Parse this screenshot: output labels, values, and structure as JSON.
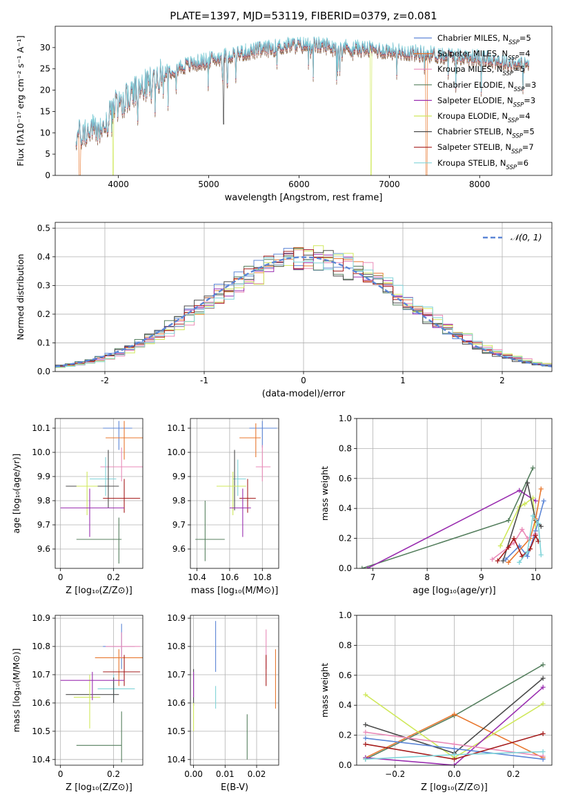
{
  "title": "PLATE=1397, MJD=53119, FIBERID=0379, z=0.081",
  "colors": {
    "blue": "#5b85d6",
    "orange": "#e8772e",
    "pink": "#e98ab8",
    "green": "#557f5e",
    "purple": "#9a2eb0",
    "yellow": "#cfe85a",
    "gray": "#4a4a4a",
    "red": "#a51c1c",
    "cyan": "#7fd3d8"
  },
  "legend": [
    {
      "key": "blue",
      "label": "Chabrier MILES, N",
      "sub": "SSP",
      "tail": "=5"
    },
    {
      "key": "orange",
      "label": "Salpeter MILES, N",
      "sub": "SSP",
      "tail": "=4"
    },
    {
      "key": "pink",
      "label": "Kroupa MILES, N",
      "sub": "SSP",
      "tail": "=5"
    },
    {
      "key": "green",
      "label": "Chabrier ELODIE, N",
      "sub": "SSP",
      "tail": "=3"
    },
    {
      "key": "purple",
      "label": "Salpeter ELODIE, N",
      "sub": "SSP",
      "tail": "=3"
    },
    {
      "key": "yellow",
      "label": "Kroupa ELODIE, N",
      "sub": "SSP",
      "tail": "=4"
    },
    {
      "key": "gray",
      "label": "Chabrier STELIB, N",
      "sub": "SSP",
      "tail": "=5"
    },
    {
      "key": "red",
      "label": "Salpeter STELIB, N",
      "sub": "SSP",
      "tail": "=7"
    },
    {
      "key": "cyan",
      "label": "Kroupa STELIB, N",
      "sub": "SSP",
      "tail": "=6"
    }
  ],
  "chart_data": [
    {
      "id": "spectrum",
      "type": "line",
      "xlabel": "wavelength [Angstrom, rest frame]",
      "ylabel": "Flux [fλ10⁻¹⁷ erg cm⁻² s⁻¹ A⁻¹]",
      "xlim": [
        3300,
        8800
      ],
      "ylim": [
        0,
        35
      ],
      "xticks": [
        4000,
        5000,
        6000,
        7000,
        8000
      ],
      "yticks": [
        0,
        5,
        10,
        15,
        20,
        25,
        30
      ],
      "continuum": [
        [
          3530,
          9
        ],
        [
          3700,
          10.5
        ],
        [
          3850,
          11
        ],
        [
          3950,
          16
        ],
        [
          4100,
          18
        ],
        [
          4300,
          21
        ],
        [
          4500,
          24
        ],
        [
          4700,
          25.5
        ],
        [
          4900,
          26.5
        ],
        [
          5100,
          27.5
        ],
        [
          5300,
          28.5
        ],
        [
          5600,
          29.5
        ],
        [
          5900,
          30.5
        ],
        [
          6200,
          30.5
        ],
        [
          6500,
          30
        ],
        [
          6800,
          29.5
        ],
        [
          7100,
          29
        ],
        [
          7400,
          28.5
        ],
        [
          7700,
          28
        ],
        [
          8000,
          27.5
        ],
        [
          8300,
          26.5
        ],
        [
          8500,
          26
        ]
      ]
    },
    {
      "id": "residuals",
      "type": "histogram",
      "xlabel": "(data-model)/error",
      "ylabel": "Normed distribution",
      "xlim": [
        -2.5,
        2.5
      ],
      "ylim": [
        0,
        0.52
      ],
      "xticks": [
        -2,
        -1,
        0,
        1,
        2
      ],
      "yticks": [
        0.0,
        0.1,
        0.2,
        0.3,
        0.4,
        0.5
      ],
      "reference_label": "𝒩(0, 1)",
      "reference": "normal(0,1)"
    },
    {
      "id": "age_vs_Z",
      "type": "scatter",
      "xlabel": "Z [log₁₀(Z/Z⊙)]",
      "ylabel": "age  [log₁₀(age/yr)]",
      "xlim": [
        -0.02,
        0.31
      ],
      "ylim": [
        9.52,
        10.14
      ],
      "xticks": [
        0.0,
        0.2
      ],
      "yticks": [
        9.6,
        9.7,
        9.8,
        9.9,
        10.0,
        10.1
      ],
      "points": [
        {
          "key": "blue",
          "x": 0.22,
          "y": 10.1,
          "xerr": [
            0.16,
            0.27
          ],
          "yerr": [
            10.01,
            10.13
          ]
        },
        {
          "key": "orange",
          "x": 0.24,
          "y": 10.06,
          "xerr": [
            0.17,
            0.31
          ],
          "yerr": [
            9.97,
            10.13
          ]
        },
        {
          "key": "pink",
          "x": 0.23,
          "y": 9.94,
          "xerr": [
            0.15,
            0.31
          ],
          "yerr": [
            9.88,
            10.02
          ]
        },
        {
          "key": "cyan",
          "x": 0.17,
          "y": 9.89,
          "xerr": [
            0.11,
            0.21
          ],
          "yerr": [
            9.82,
            9.98
          ]
        },
        {
          "key": "gray",
          "x": 0.18,
          "y": 9.86,
          "xerr": [
            0.02,
            0.22
          ],
          "yerr": [
            9.77,
            10.01
          ]
        },
        {
          "key": "yellow",
          "x": 0.1,
          "y": 9.86,
          "xerr": [
            0.06,
            0.14
          ],
          "yerr": [
            9.74,
            9.92
          ]
        },
        {
          "key": "red",
          "x": 0.24,
          "y": 9.81,
          "xerr": [
            0.16,
            0.3
          ],
          "yerr": [
            9.75,
            9.89
          ]
        },
        {
          "key": "purple",
          "x": 0.11,
          "y": 9.77,
          "xerr": [
            0.0,
            0.24
          ],
          "yerr": [
            9.65,
            9.85
          ]
        },
        {
          "key": "green",
          "x": 0.22,
          "y": 9.64,
          "xerr": [
            0.06,
            0.23
          ],
          "yerr": [
            9.54,
            9.73
          ]
        }
      ]
    },
    {
      "id": "age_vs_mass",
      "type": "scatter",
      "xlabel": "mass [log₁₀(M/M⊙)]",
      "ylabel": "",
      "xlim": [
        10.36,
        10.9
      ],
      "ylim": [
        9.52,
        10.14
      ],
      "xticks": [
        10.4,
        10.6,
        10.8
      ],
      "yticks": [
        9.6,
        9.7,
        9.8,
        9.9,
        10.0,
        10.1
      ],
      "points": [
        {
          "key": "blue",
          "x": 10.8,
          "y": 10.1,
          "xerr": [
            10.72,
            10.89
          ],
          "yerr": [
            10.02,
            10.13
          ]
        },
        {
          "key": "orange",
          "x": 10.76,
          "y": 10.06,
          "xerr": [
            10.66,
            10.79
          ],
          "yerr": [
            9.98,
            10.12
          ]
        },
        {
          "key": "pink",
          "x": 10.8,
          "y": 9.94,
          "xerr": [
            10.76,
            10.85
          ],
          "yerr": [
            9.88,
            10.03
          ]
        },
        {
          "key": "cyan",
          "x": 10.65,
          "y": 9.89,
          "xerr": [
            10.62,
            10.7
          ],
          "yerr": [
            9.82,
            9.97
          ]
        },
        {
          "key": "gray",
          "x": 10.63,
          "y": 9.86,
          "xerr": [
            10.6,
            10.7
          ],
          "yerr": [
            9.76,
            10.01
          ]
        },
        {
          "key": "yellow",
          "x": 10.62,
          "y": 9.86,
          "xerr": [
            10.52,
            10.7
          ],
          "yerr": [
            9.74,
            9.92
          ]
        },
        {
          "key": "red",
          "x": 10.71,
          "y": 9.81,
          "xerr": [
            10.66,
            10.76
          ],
          "yerr": [
            9.75,
            9.89
          ]
        },
        {
          "key": "purple",
          "x": 10.68,
          "y": 9.77,
          "xerr": [
            10.6,
            10.73
          ],
          "yerr": [
            9.65,
            9.85
          ]
        },
        {
          "key": "green",
          "x": 10.45,
          "y": 9.64,
          "xerr": [
            10.39,
            10.57
          ],
          "yerr": [
            9.55,
            9.8
          ]
        }
      ]
    },
    {
      "id": "weight_vs_age",
      "type": "line",
      "xlabel": "age  [log₁₀(age/yr)]",
      "ylabel": "mass weight",
      "xlim": [
        6.7,
        10.3
      ],
      "ylim": [
        0.0,
        1.0
      ],
      "xticks": [
        7,
        8,
        9,
        10
      ],
      "yticks": [
        0.0,
        0.2,
        0.4,
        0.6,
        0.8,
        1.0
      ],
      "series": [
        {
          "key": "green",
          "x": [
            6.8,
            9.5,
            9.95
          ],
          "y": [
            0.0,
            0.32,
            0.67
          ]
        },
        {
          "key": "purple",
          "x": [
            6.9,
            9.7,
            10.0
          ],
          "y": [
            0.0,
            0.52,
            0.45
          ]
        },
        {
          "key": "yellow",
          "x": [
            9.35,
            9.7,
            9.8,
            9.95,
            10.0
          ],
          "y": [
            0.15,
            0.41,
            0.43,
            0.47,
            0.25
          ]
        },
        {
          "key": "gray",
          "x": [
            9.4,
            9.85,
            10.0,
            10.1
          ],
          "y": [
            0.05,
            0.57,
            0.32,
            0.28
          ]
        },
        {
          "key": "blue",
          "x": [
            9.45,
            9.7,
            9.85,
            10.0,
            10.15
          ],
          "y": [
            0.06,
            0.15,
            0.08,
            0.25,
            0.45
          ]
        },
        {
          "key": "orange",
          "x": [
            9.5,
            9.9,
            10.0,
            10.1
          ],
          "y": [
            0.04,
            0.2,
            0.33,
            0.53
          ]
        },
        {
          "key": "pink",
          "x": [
            9.2,
            9.6,
            9.75,
            9.85,
            10.0
          ],
          "y": [
            0.06,
            0.17,
            0.26,
            0.2,
            0.23
          ]
        },
        {
          "key": "red",
          "x": [
            9.3,
            9.5,
            9.6,
            9.75,
            9.9,
            10.0,
            10.05
          ],
          "y": [
            0.05,
            0.14,
            0.2,
            0.08,
            0.13,
            0.22,
            0.18
          ]
        },
        {
          "key": "cyan",
          "x": [
            9.7,
            9.85,
            9.95,
            10.05,
            10.1
          ],
          "y": [
            0.04,
            0.11,
            0.35,
            0.3,
            0.09
          ]
        }
      ]
    },
    {
      "id": "mass_vs_Z",
      "type": "scatter",
      "xlabel": "Z [log₁₀(Z/Z⊙)]",
      "ylabel": "mass [log₁₀(M/M⊙)]",
      "xlim": [
        -0.02,
        0.31
      ],
      "ylim": [
        10.38,
        10.91
      ],
      "xticks": [
        0.0,
        0.2
      ],
      "yticks": [
        10.4,
        10.5,
        10.6,
        10.7,
        10.8,
        10.9
      ],
      "points": [
        {
          "key": "blue",
          "x": 0.23,
          "y": 10.8,
          "xerr": [
            0.16,
            0.28
          ],
          "yerr": [
            10.72,
            10.88
          ]
        },
        {
          "key": "orange",
          "x": 0.22,
          "y": 10.76,
          "xerr": [
            0.13,
            0.31
          ],
          "yerr": [
            10.66,
            10.79
          ]
        },
        {
          "key": "pink",
          "x": 0.23,
          "y": 10.8,
          "xerr": [
            0.17,
            0.3
          ],
          "yerr": [
            10.76,
            10.85
          ]
        },
        {
          "key": "cyan",
          "x": 0.2,
          "y": 10.65,
          "xerr": [
            0.14,
            0.28
          ],
          "yerr": [
            10.62,
            10.7
          ]
        },
        {
          "key": "gray",
          "x": 0.2,
          "y": 10.63,
          "xerr": [
            0.02,
            0.22
          ],
          "yerr": [
            10.6,
            10.69
          ]
        },
        {
          "key": "yellow",
          "x": 0.11,
          "y": 10.62,
          "xerr": [
            0.05,
            0.15
          ],
          "yerr": [
            10.51,
            10.7
          ]
        },
        {
          "key": "red",
          "x": 0.24,
          "y": 10.71,
          "xerr": [
            0.16,
            0.3
          ],
          "yerr": [
            10.66,
            10.77
          ]
        },
        {
          "key": "purple",
          "x": 0.12,
          "y": 10.68,
          "xerr": [
            0.0,
            0.24
          ],
          "yerr": [
            10.61,
            10.71
          ]
        },
        {
          "key": "green",
          "x": 0.23,
          "y": 10.45,
          "xerr": [
            0.06,
            0.23
          ],
          "yerr": [
            10.39,
            10.57
          ]
        }
      ]
    },
    {
      "id": "mass_vs_ebv",
      "type": "scatter",
      "xlabel": "E(B-V)",
      "ylabel": "",
      "xlim": [
        -0.001,
        0.027
      ],
      "ylim": [
        10.38,
        10.91
      ],
      "xticks": [
        0.0,
        0.01,
        0.02
      ],
      "xticklabels": [
        "0.00",
        "0.01",
        "0.02"
      ],
      "yticks": [
        10.4,
        10.5,
        10.6,
        10.7,
        10.8,
        10.9
      ],
      "points": [
        {
          "key": "blue",
          "x": 0.007,
          "y": 10.8,
          "yerr": [
            10.71,
            10.89
          ]
        },
        {
          "key": "orange",
          "x": 0.026,
          "y": 10.7,
          "yerr": [
            10.58,
            10.79
          ]
        },
        {
          "key": "pink",
          "x": 0.023,
          "y": 10.8,
          "yerr": [
            10.72,
            10.86
          ]
        },
        {
          "key": "cyan",
          "x": 0.007,
          "y": 10.62,
          "yerr": [
            10.58,
            10.66
          ]
        },
        {
          "key": "gray",
          "x": 0.0,
          "y": 10.65,
          "yerr": [
            10.59,
            10.72
          ]
        },
        {
          "key": "yellow",
          "x": 0.0,
          "y": 10.55,
          "yerr": [
            10.5,
            10.6
          ]
        },
        {
          "key": "red",
          "x": 0.023,
          "y": 10.7,
          "yerr": [
            10.66,
            10.77
          ]
        },
        {
          "key": "purple",
          "x": 0.0,
          "y": 10.66,
          "yerr": [
            10.62,
            10.71
          ]
        },
        {
          "key": "green",
          "x": 0.017,
          "y": 10.48,
          "yerr": [
            10.4,
            10.56
          ]
        }
      ]
    },
    {
      "id": "weight_vs_Z",
      "type": "line",
      "xlabel": "Z [log₁₀(Z/Z⊙)]",
      "ylabel": "mass weight",
      "xlim": [
        -0.33,
        0.33
      ],
      "ylim": [
        0.0,
        1.0
      ],
      "xticks": [
        -0.2,
        0.0,
        0.2
      ],
      "xticklabels": [
        "−0.2",
        "0.0",
        "0.2"
      ],
      "yticks": [
        0.0,
        0.2,
        0.4,
        0.6,
        0.8,
        1.0
      ],
      "series": [
        {
          "key": "green",
          "x": [
            -0.3,
            0.0,
            0.3
          ],
          "y": [
            0.04,
            0.33,
            0.67
          ]
        },
        {
          "key": "orange",
          "x": [
            -0.3,
            0.0,
            0.3
          ],
          "y": [
            0.05,
            0.34,
            0.05
          ]
        },
        {
          "key": "yellow",
          "x": [
            -0.3,
            0.0,
            0.3
          ],
          "y": [
            0.47,
            0.05,
            0.41
          ]
        },
        {
          "key": "gray",
          "x": [
            -0.3,
            0.0,
            0.3
          ],
          "y": [
            0.27,
            0.08,
            0.58
          ]
        },
        {
          "key": "purple",
          "x": [
            -0.3,
            0.0,
            0.3
          ],
          "y": [
            0.05,
            0.0,
            0.52
          ]
        },
        {
          "key": "blue",
          "x": [
            -0.3,
            0.0,
            0.3
          ],
          "y": [
            0.18,
            0.11,
            0.04
          ]
        },
        {
          "key": "pink",
          "x": [
            -0.3,
            0.0,
            0.3
          ],
          "y": [
            0.22,
            0.14,
            0.06
          ]
        },
        {
          "key": "red",
          "x": [
            -0.3,
            0.0,
            0.3
          ],
          "y": [
            0.14,
            0.04,
            0.21
          ]
        },
        {
          "key": "cyan",
          "x": [
            -0.3,
            0.0,
            0.3
          ],
          "y": [
            0.04,
            0.07,
            0.09
          ]
        }
      ]
    }
  ]
}
